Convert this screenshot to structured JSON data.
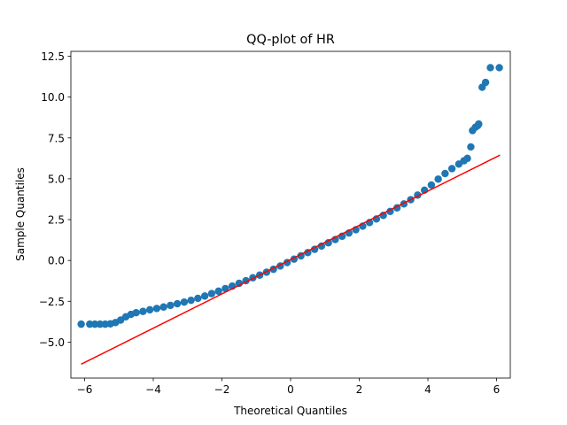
{
  "chart_data": {
    "type": "scatter",
    "title": "QQ-plot of HR",
    "xlabel": "Theoretical Quantiles",
    "ylabel": "Sample Quantiles",
    "xlim": [
      -6.4,
      6.4
    ],
    "ylim": [
      -7.2,
      12.8
    ],
    "xticks": [
      -6,
      -4,
      -2,
      0,
      2,
      4,
      6
    ],
    "xtick_labels": [
      "−6",
      "−4",
      "−2",
      "0",
      "2",
      "4",
      "6"
    ],
    "yticks": [
      -5.0,
      -2.5,
      0.0,
      2.5,
      5.0,
      7.5,
      10.0,
      12.5
    ],
    "ytick_labels": [
      "−5.0",
      "−2.5",
      "0.0",
      "2.5",
      "5.0",
      "7.5",
      "10.0",
      "12.5"
    ],
    "grid": false,
    "colors": {
      "points": "#1f77b4",
      "reference_line": "#ff0000"
    },
    "series": [
      {
        "type": "scatter",
        "x": [
          -6.1,
          -5.85,
          -5.7,
          -5.55,
          -5.4,
          -5.25,
          -5.1,
          -4.95,
          -4.8,
          -4.65,
          -4.5,
          -4.3,
          -4.1,
          -3.9,
          -3.7,
          -3.5,
          -3.3,
          -3.1,
          -2.9,
          -2.7,
          -2.5,
          -2.3,
          -2.1,
          -1.9,
          -1.7,
          -1.5,
          -1.3,
          -1.1,
          -0.9,
          -0.7,
          -0.5,
          -0.3,
          -0.1,
          0.1,
          0.3,
          0.5,
          0.7,
          0.9,
          1.1,
          1.3,
          1.5,
          1.7,
          1.9,
          2.1,
          2.3,
          2.5,
          2.7,
          2.9,
          3.1,
          3.3,
          3.5,
          3.7,
          3.9,
          4.1,
          4.3,
          4.5,
          4.7,
          4.9,
          5.05,
          5.15,
          5.25,
          5.3,
          5.38,
          5.45,
          5.48,
          5.58,
          5.68,
          5.82,
          6.08
        ],
        "y": [
          -3.9,
          -3.9,
          -3.9,
          -3.9,
          -3.9,
          -3.88,
          -3.8,
          -3.65,
          -3.45,
          -3.3,
          -3.2,
          -3.12,
          -3.02,
          -2.94,
          -2.85,
          -2.75,
          -2.65,
          -2.55,
          -2.44,
          -2.32,
          -2.18,
          -2.03,
          -1.88,
          -1.72,
          -1.57,
          -1.4,
          -1.24,
          -1.06,
          -0.9,
          -0.72,
          -0.54,
          -0.34,
          -0.13,
          0.08,
          0.28,
          0.48,
          0.68,
          0.88,
          1.08,
          1.28,
          1.48,
          1.68,
          1.88,
          2.1,
          2.32,
          2.54,
          2.76,
          3.0,
          3.22,
          3.46,
          3.72,
          4.0,
          4.3,
          4.62,
          4.98,
          5.32,
          5.62,
          5.9,
          6.1,
          6.25,
          6.95,
          7.95,
          8.15,
          8.25,
          8.35,
          10.6,
          10.9,
          11.8,
          11.8
        ]
      },
      {
        "type": "line",
        "x": [
          -6.1,
          6.1
        ],
        "y": [
          -6.35,
          6.45
        ]
      }
    ]
  }
}
